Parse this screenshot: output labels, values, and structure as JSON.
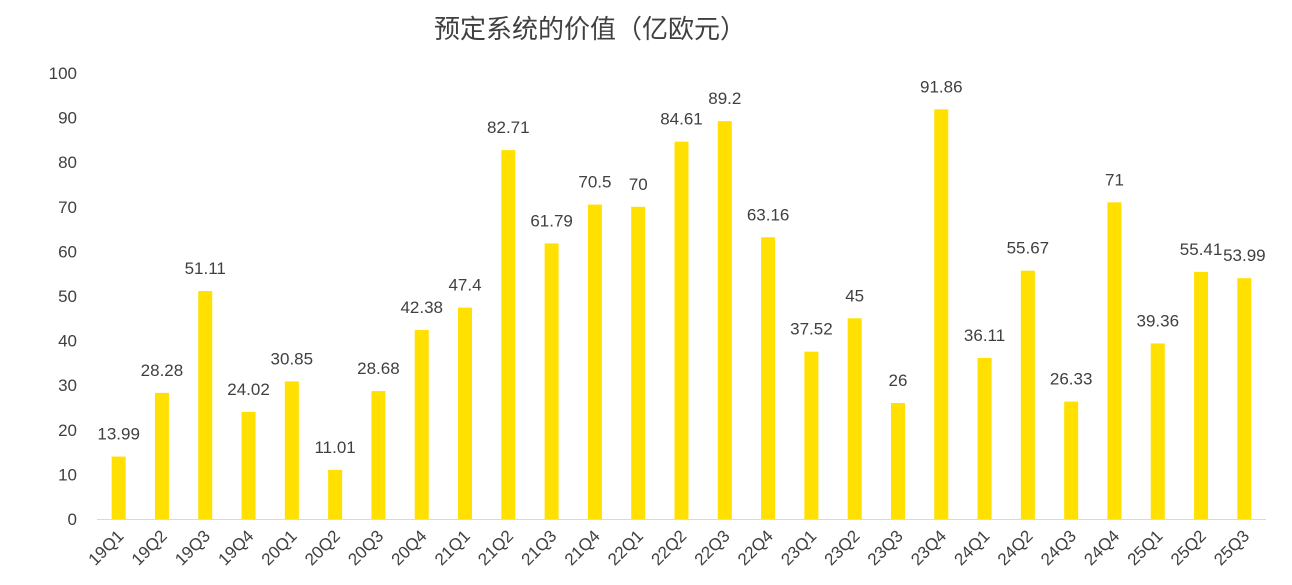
{
  "chart_data": {
    "type": "bar",
    "title": "预定系统的价值（亿欧元）",
    "xlabel": "",
    "ylabel": "",
    "ylim": [
      0,
      100
    ],
    "yticks": [
      0,
      10,
      20,
      30,
      40,
      50,
      60,
      70,
      80,
      90,
      100
    ],
    "grid": false,
    "legend": "none",
    "bar_color": "#FFE000",
    "categories": [
      "19Q1",
      "19Q2",
      "19Q3",
      "19Q4",
      "20Q1",
      "20Q2",
      "20Q3",
      "20Q4",
      "21Q1",
      "21Q2",
      "21Q3",
      "21Q4",
      "22Q1",
      "22Q2",
      "22Q3",
      "22Q4",
      "23Q1",
      "23Q2",
      "23Q3",
      "23Q4",
      "24Q1",
      "24Q2",
      "24Q3",
      "24Q4",
      "25Q1",
      "25Q2",
      "25Q3"
    ],
    "values": [
      13.99,
      28.28,
      51.11,
      24.02,
      30.85,
      11.01,
      28.68,
      42.38,
      47.4,
      82.71,
      61.79,
      70.5,
      70,
      84.61,
      89.2,
      63.16,
      37.52,
      45,
      26,
      91.86,
      36.11,
      55.67,
      26.33,
      71,
      39.36,
      55.41,
      53.99
    ],
    "data_labels": [
      "13.99",
      "28.28",
      "51.11",
      "24.02",
      "30.85",
      "11.01",
      "28.68",
      "42.38",
      "47.4",
      "82.71",
      "61.79",
      "70.5",
      "70",
      "84.61",
      "89.2",
      "63.16",
      "37.52",
      "45",
      "26",
      "91.86",
      "36.11",
      "55.67",
      "26.33",
      "71",
      "39.36",
      "55.41",
      "53.99"
    ]
  }
}
